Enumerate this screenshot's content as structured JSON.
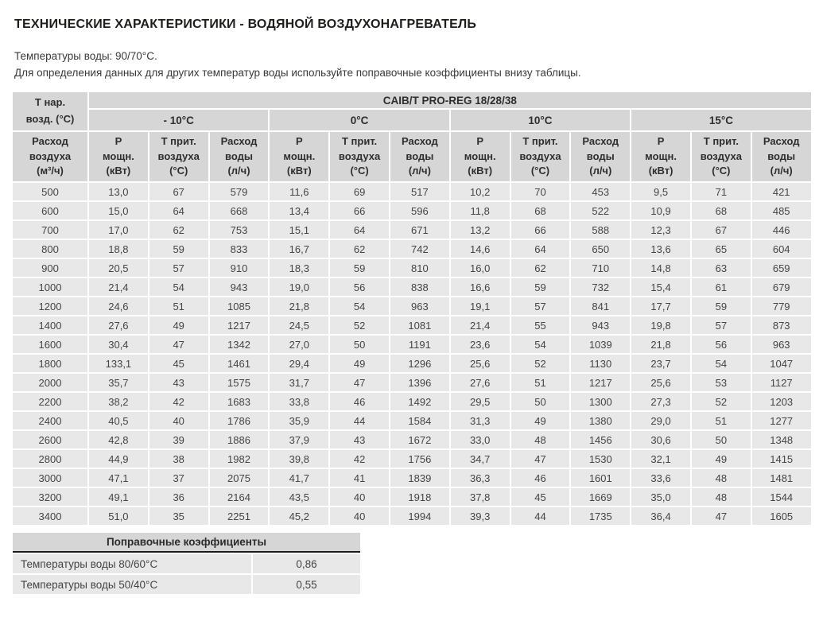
{
  "page": {
    "title": "ТЕХНИЧЕСКИЕ ХАРАКТЕРИСТИКИ - ВОДЯНОЙ ВОЗДУХОНАГРЕВАТЕЛЬ",
    "subtitle_line1": "Температуры воды: 90/70°С.",
    "subtitle_line2": "Для определения данных для других температур воды используйте поправочные коэффициенты внизу таблицы."
  },
  "main_table": {
    "corner_header": "Т нар.\nвозд. (°С)",
    "model_header": "CAIB/T PRO-REG 18/28/38",
    "temp_groups": [
      "- 10°С",
      "0°С",
      "10°С",
      "15°С"
    ],
    "airflow_header": "Расход\nвоздуха\n(м³/ч)",
    "sub_headers": [
      "Р\nмощн.\n(кВт)",
      "Т прит.\nвоздуха\n(°С)",
      "Расход\nводы\n(л/ч)"
    ],
    "rows": [
      [
        "500",
        "13,0",
        "67",
        "579",
        "11,6",
        "69",
        "517",
        "10,2",
        "70",
        "453",
        "9,5",
        "71",
        "421"
      ],
      [
        "600",
        "15,0",
        "64",
        "668",
        "13,4",
        "66",
        "596",
        "11,8",
        "68",
        "522",
        "10,9",
        "68",
        "485"
      ],
      [
        "700",
        "17,0",
        "62",
        "753",
        "15,1",
        "64",
        "671",
        "13,2",
        "66",
        "588",
        "12,3",
        "67",
        "446"
      ],
      [
        "800",
        "18,8",
        "59",
        "833",
        "16,7",
        "62",
        "742",
        "14,6",
        "64",
        "650",
        "13,6",
        "65",
        "604"
      ],
      [
        "900",
        "20,5",
        "57",
        "910",
        "18,3",
        "59",
        "810",
        "16,0",
        "62",
        "710",
        "14,8",
        "63",
        "659"
      ],
      [
        "1000",
        "21,4",
        "54",
        "943",
        "19,0",
        "56",
        "838",
        "16,6",
        "59",
        "732",
        "15,4",
        "61",
        "679"
      ],
      [
        "1200",
        "24,6",
        "51",
        "1085",
        "21,8",
        "54",
        "963",
        "19,1",
        "57",
        "841",
        "17,7",
        "59",
        "779"
      ],
      [
        "1400",
        "27,6",
        "49",
        "1217",
        "24,5",
        "52",
        "1081",
        "21,4",
        "55",
        "943",
        "19,8",
        "57",
        "873"
      ],
      [
        "1600",
        "30,4",
        "47",
        "1342",
        "27,0",
        "50",
        "1191",
        "23,6",
        "54",
        "1039",
        "21,8",
        "56",
        "963"
      ],
      [
        "1800",
        "133,1",
        "45",
        "1461",
        "29,4",
        "49",
        "1296",
        "25,6",
        "52",
        "1130",
        "23,7",
        "54",
        "1047"
      ],
      [
        "2000",
        "35,7",
        "43",
        "1575",
        "31,7",
        "47",
        "1396",
        "27,6",
        "51",
        "1217",
        "25,6",
        "53",
        "1127"
      ],
      [
        "2200",
        "38,2",
        "42",
        "1683",
        "33,8",
        "46",
        "1492",
        "29,5",
        "50",
        "1300",
        "27,3",
        "52",
        "1203"
      ],
      [
        "2400",
        "40,5",
        "40",
        "1786",
        "35,9",
        "44",
        "1584",
        "31,3",
        "49",
        "1380",
        "29,0",
        "51",
        "1277"
      ],
      [
        "2600",
        "42,8",
        "39",
        "1886",
        "37,9",
        "43",
        "1672",
        "33,0",
        "48",
        "1456",
        "30,6",
        "50",
        "1348"
      ],
      [
        "2800",
        "44,9",
        "38",
        "1982",
        "39,8",
        "42",
        "1756",
        "34,7",
        "47",
        "1530",
        "32,1",
        "49",
        "1415"
      ],
      [
        "3000",
        "47,1",
        "37",
        "2075",
        "41,7",
        "41",
        "1839",
        "36,3",
        "46",
        "1601",
        "33,6",
        "48",
        "1481"
      ],
      [
        "3200",
        "49,1",
        "36",
        "2164",
        "43,5",
        "40",
        "1918",
        "37,8",
        "45",
        "1669",
        "35,0",
        "48",
        "1544"
      ],
      [
        "3400",
        "51,0",
        "35",
        "2251",
        "45,2",
        "40",
        "1994",
        "39,3",
        "44",
        "1735",
        "36,4",
        "47",
        "1605"
      ]
    ]
  },
  "coefficients_table": {
    "title": "Поправочные коэффициенты",
    "rows": [
      {
        "label": "Температуры воды 80/60°С",
        "value": "0,86"
      },
      {
        "label": "Температуры воды 50/40°С",
        "value": "0,55"
      }
    ]
  }
}
